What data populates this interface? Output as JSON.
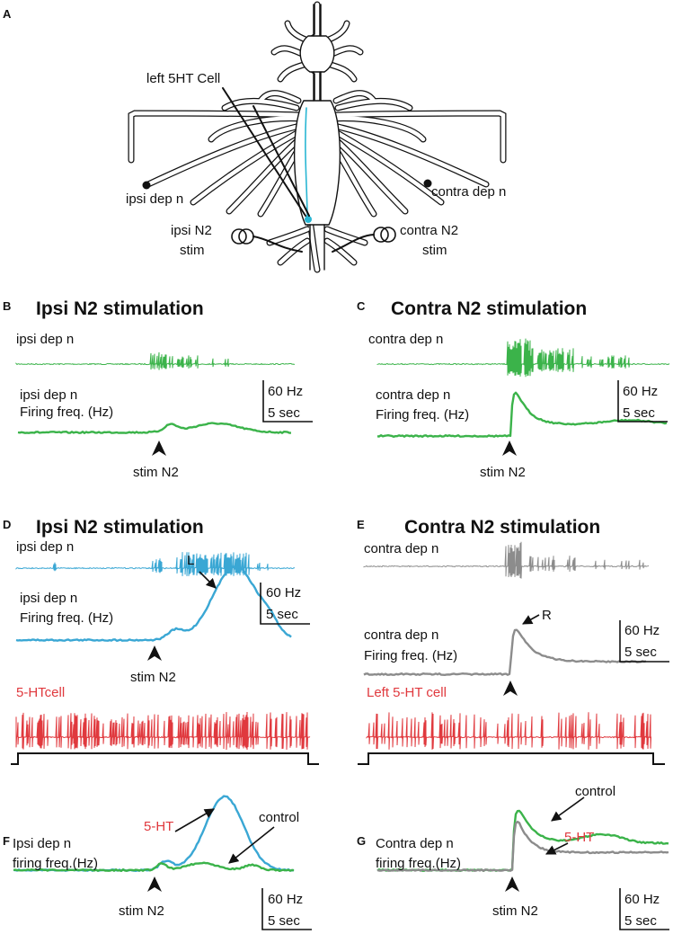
{
  "panel_labels": [
    "A",
    "B",
    "C",
    "D",
    "E",
    "F",
    "G"
  ],
  "panel_a": {
    "cell_label": "left 5HT Cell",
    "ipsi_nerve": "ipsi dep n",
    "contra_nerve": "contra dep n",
    "ipsi_stim": [
      "ipsi N2",
      "stim"
    ],
    "contra_stim": [
      "contra N2",
      "stim"
    ]
  },
  "panel_b": {
    "title": "Ipsi N2 stimulation",
    "trace_label": "ipsi dep n",
    "freq_label": [
      "ipsi dep n",
      "Firing freq. (Hz)"
    ],
    "scale": [
      "60 Hz",
      "5 sec"
    ],
    "stim": "stim N2"
  },
  "panel_c": {
    "title": "Contra N2 stimulation",
    "trace_label": "contra dep n",
    "freq_label": [
      "contra dep n",
      "Firing freq. (Hz)"
    ],
    "scale": [
      "60 Hz",
      "5 sec"
    ],
    "stim": "stim N2"
  },
  "panel_d": {
    "title": "Ipsi N2 stimulation",
    "trace_label": "ipsi dep n",
    "freq_label": [
      "ipsi dep n",
      "Firing freq. (Hz)"
    ],
    "peak_label": "L",
    "scale": [
      "60 Hz",
      "5 sec"
    ],
    "stim": "stim N2",
    "cell_label": "5-HTcell"
  },
  "panel_e": {
    "title": "Contra N2 stimulation",
    "trace_label": "contra dep n",
    "freq_label": [
      "contra dep n",
      "Firing freq. (Hz)"
    ],
    "peak_label": "R",
    "scale": [
      "60 Hz",
      "5 sec"
    ],
    "cell_label": "Left 5-HT cell"
  },
  "panel_f": {
    "treated_label": "5-HT",
    "control_label": "control",
    "freq_label": [
      "Ipsi dep n",
      "firing freq.(Hz)"
    ],
    "stim": "stim N2",
    "scale": [
      "60 Hz",
      "5 sec"
    ]
  },
  "panel_g": {
    "control_label": "control",
    "treated_label": "5-HT",
    "freq_label": [
      "Contra dep n",
      "firing freq.(Hz)"
    ],
    "stim": "stim N2",
    "scale": [
      "60 Hz",
      "5 sec"
    ]
  }
}
